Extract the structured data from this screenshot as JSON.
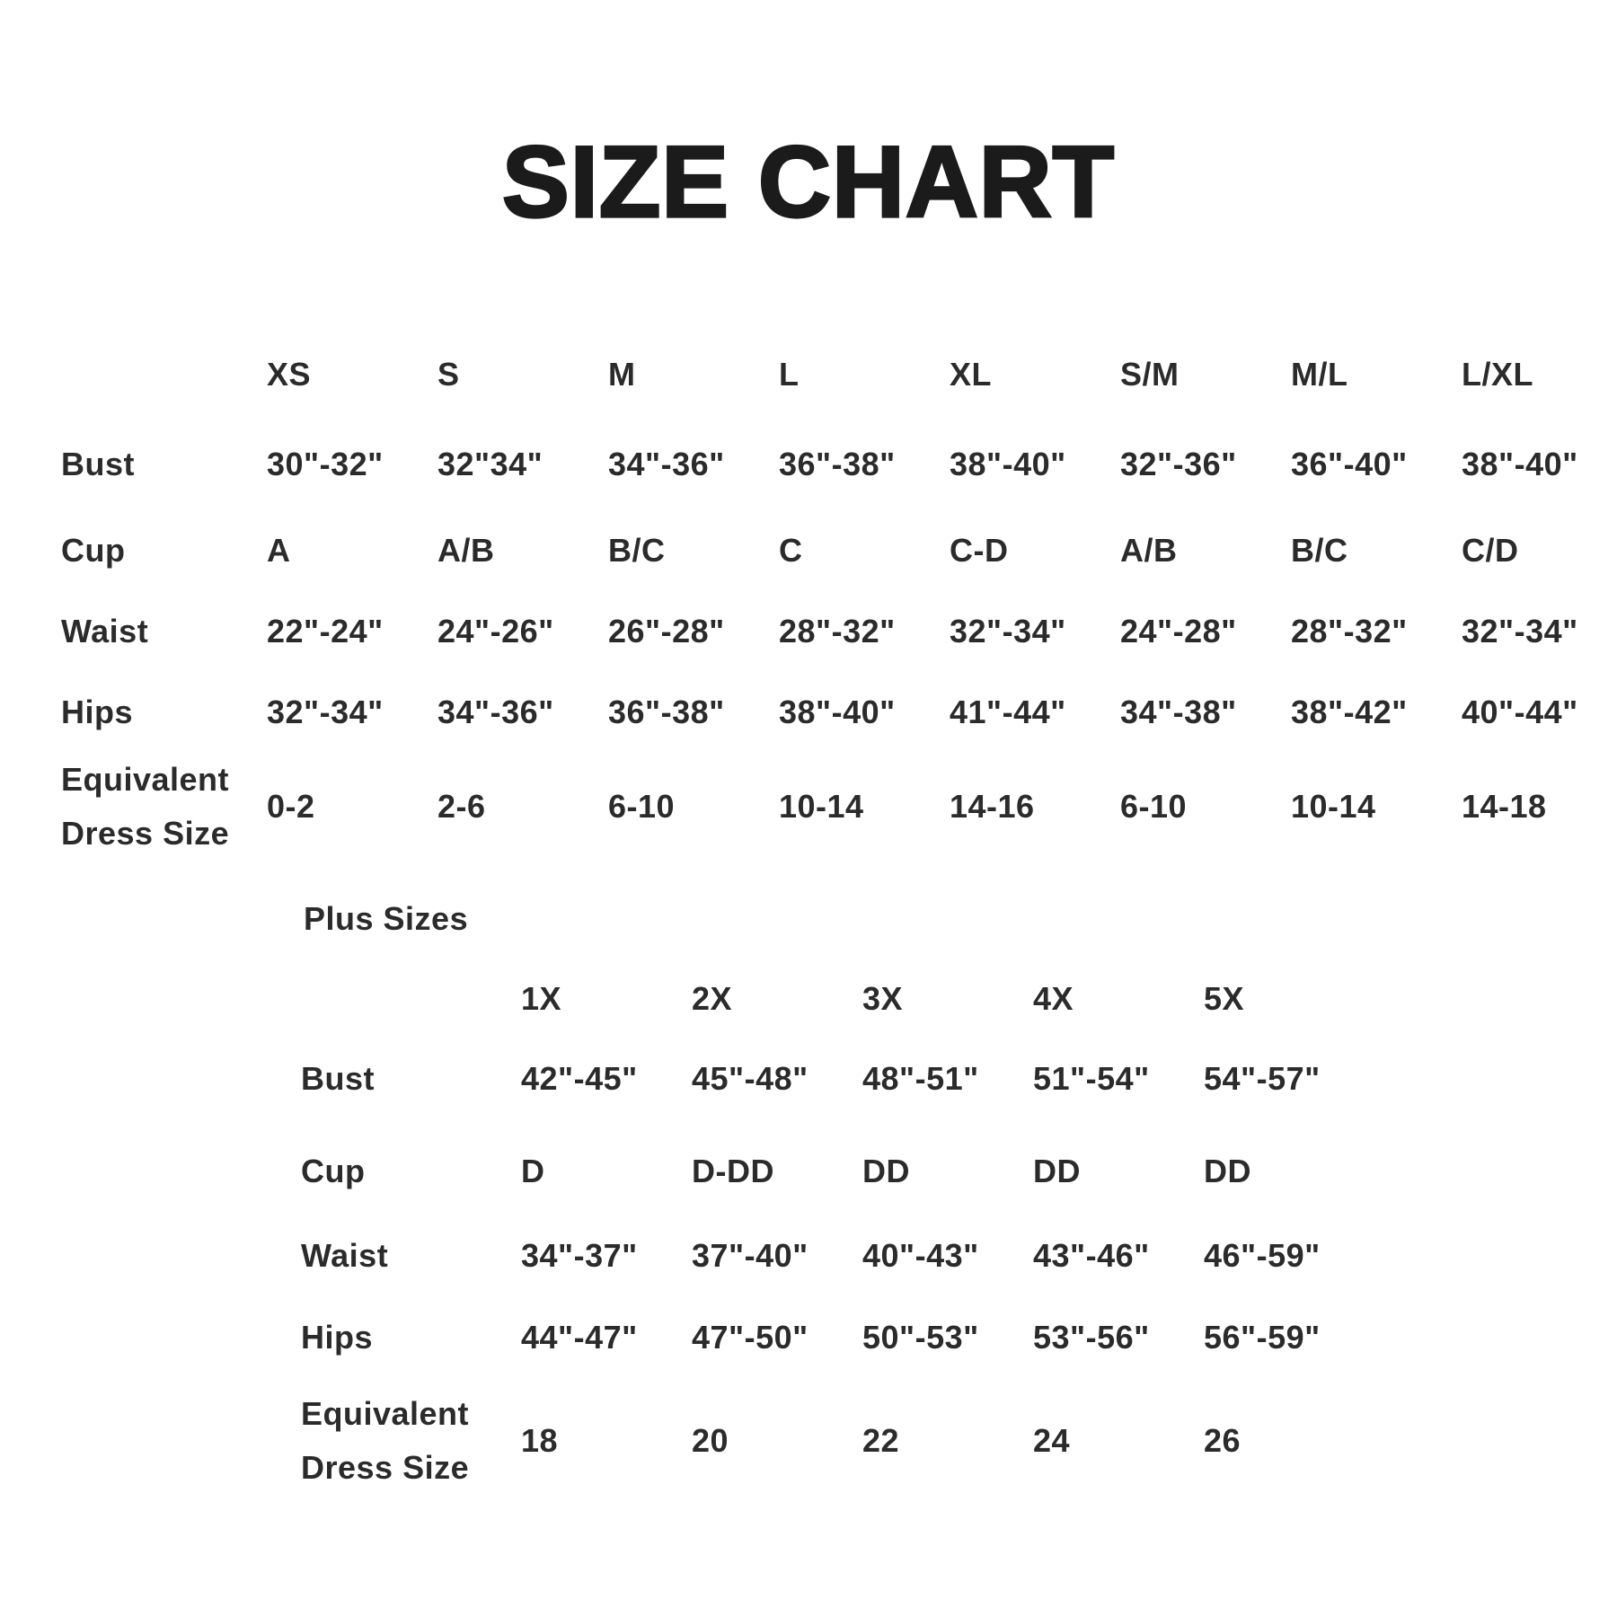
{
  "title": "SIZE CHART",
  "plus_section_label": "Plus Sizes",
  "colors": {
    "background": "#ffffff",
    "title_text": "#1b1b1b",
    "table_text": "#2b2b2b"
  },
  "tables": {
    "standard": {
      "columns": [
        "XS",
        "S",
        "M",
        "L",
        "XL",
        "S/M",
        "M/L",
        "L/XL"
      ],
      "rows": [
        {
          "label": [
            "Bust"
          ],
          "values": [
            "30\"-32\"",
            "32\"34\"",
            "34\"-36\"",
            "36\"-38\"",
            "38\"-40\"",
            "32\"-36\"",
            "36\"-40\"",
            "38\"-40\""
          ]
        },
        {
          "label": [
            "Cup"
          ],
          "values": [
            "A",
            "A/B",
            "B/C",
            "C",
            "C-D",
            "A/B",
            "B/C",
            "C/D"
          ]
        },
        {
          "label": [
            "Waist"
          ],
          "values": [
            "22\"-24\"",
            "24\"-26\"",
            "26\"-28\"",
            "28\"-32\"",
            "32\"-34\"",
            "24\"-28\"",
            "28\"-32\"",
            "32\"-34\""
          ]
        },
        {
          "label": [
            "Hips"
          ],
          "values": [
            "32\"-34\"",
            "34\"-36\"",
            "36\"-38\"",
            "38\"-40\"",
            "41\"-44\"",
            "34\"-38\"",
            "38\"-42\"",
            "40\"-44\""
          ]
        },
        {
          "label": [
            "Equivalent",
            "Dress Size"
          ],
          "values": [
            "0-2",
            "2-6",
            "6-10",
            "10-14",
            "14-16",
            "6-10",
            "10-14",
            "14-18"
          ]
        }
      ]
    },
    "plus": {
      "columns": [
        "1X",
        "2X",
        "3X",
        "4X",
        "5X"
      ],
      "rows": [
        {
          "label": [
            "Bust"
          ],
          "values": [
            "42\"-45\"",
            "45\"-48\"",
            "48\"-51\"",
            "51\"-54\"",
            "54\"-57\""
          ]
        },
        {
          "label": [
            "Cup"
          ],
          "values": [
            "D",
            "D-DD",
            "DD",
            "DD",
            "DD"
          ]
        },
        {
          "label": [
            "Waist"
          ],
          "values": [
            "34\"-37\"",
            "37\"-40\"",
            "40\"-43\"",
            "43\"-46\"",
            "46\"-59\""
          ]
        },
        {
          "label": [
            "Hips"
          ],
          "values": [
            "44\"-47\"",
            "47\"-50\"",
            "50\"-53\"",
            "53\"-56\"",
            "56\"-59\""
          ]
        },
        {
          "label": [
            "Equivalent",
            "Dress Size"
          ],
          "values": [
            "18",
            "20",
            "22",
            "24",
            "26"
          ]
        }
      ]
    }
  }
}
